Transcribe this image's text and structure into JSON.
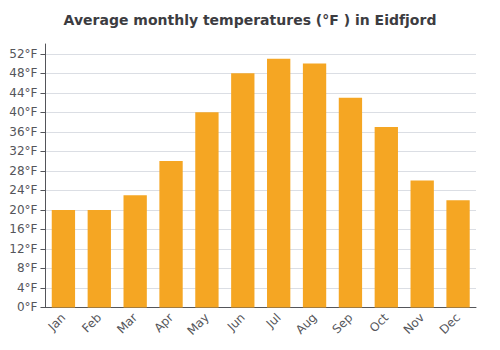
{
  "chart_data": {
    "type": "bar",
    "title": "Average monthly temperatures (°F ) in Eidfjord",
    "categories": [
      "Jan",
      "Feb",
      "Mar",
      "Apr",
      "May",
      "Jun",
      "Jul",
      "Aug",
      "Sep",
      "Oct",
      "Nov",
      "Dec"
    ],
    "values": [
      20,
      20,
      23,
      30,
      40,
      48,
      51,
      50,
      43,
      37,
      26,
      22
    ],
    "color": "#F5A623",
    "ylim": [
      0,
      54
    ],
    "yticks": [
      {
        "value": 0,
        "label": "0°F"
      },
      {
        "value": 4,
        "label": "4°F"
      },
      {
        "value": 8,
        "label": "8°F"
      },
      {
        "value": 12,
        "label": "12°F"
      },
      {
        "value": 16,
        "label": "16°F"
      },
      {
        "value": 20,
        "label": "20°F"
      },
      {
        "value": 24,
        "label": "24°F"
      },
      {
        "value": 28,
        "label": "28°F"
      },
      {
        "value": 32,
        "label": "32°F"
      },
      {
        "value": 36,
        "label": "36°F"
      },
      {
        "value": 40,
        "label": "40°F"
      },
      {
        "value": 44,
        "label": "44°F"
      },
      {
        "value": 48,
        "label": "48°F"
      },
      {
        "value": 52,
        "label": "52°F"
      }
    ],
    "grid": true
  }
}
